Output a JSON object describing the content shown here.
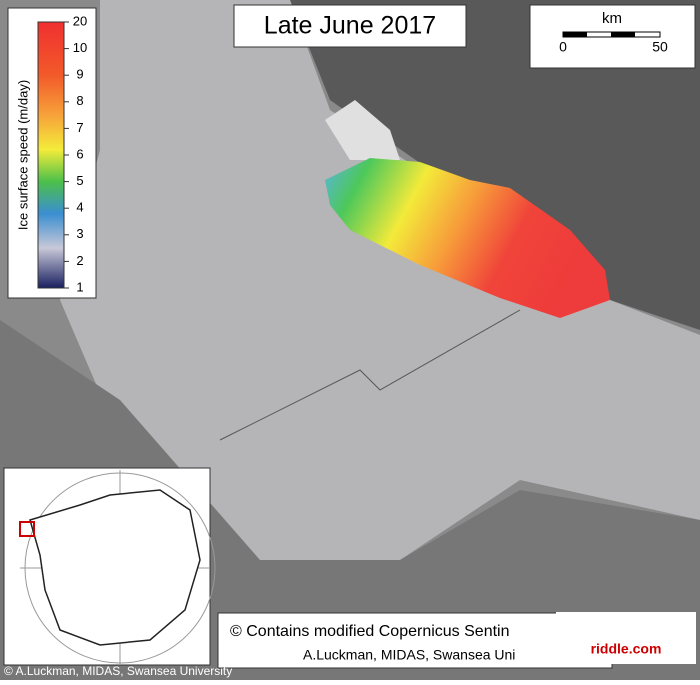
{
  "title": "Late June 2017",
  "scale_bar": {
    "unit": "km",
    "start": "0",
    "end": "50"
  },
  "colorbar": {
    "label": "Ice surface speed (m/day)",
    "ticks": [
      "20",
      "10",
      "9",
      "8",
      "7",
      "6",
      "5",
      "4",
      "3",
      "2",
      "1"
    ]
  },
  "credit": {
    "line1": "© Contains modified Copernicus Sentin",
    "line2": "A.Luckman, MIDAS, Swansea Uni"
  },
  "footer": "© A.Luckman, MIDAS, Swansea University",
  "watermark": "riddle.com"
}
